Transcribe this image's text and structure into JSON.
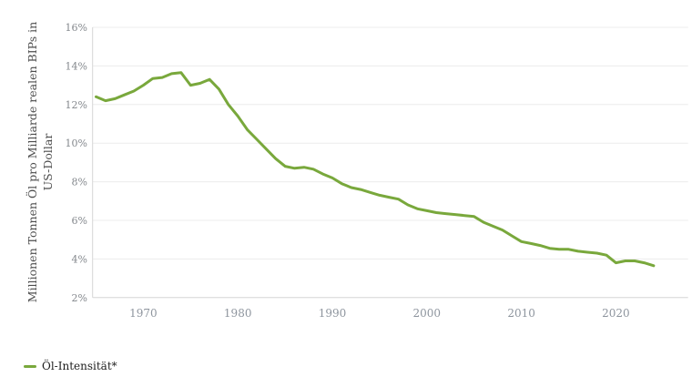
{
  "chart_data": {
    "type": "line",
    "title": "",
    "xlabel": "",
    "ylabel": "Millionen Tonnen Öl pro Milliarde realen BIPs in US-Dollar",
    "ylabel_lines": [
      "Millionen Tonnen Öl pro Milliarde realen BIPs in",
      "US-Dollar"
    ],
    "x_domain": [
      1965,
      2024
    ],
    "y_domain": [
      2,
      16
    ],
    "x_ticks": [
      "1970",
      "1980",
      "1990",
      "2000",
      "2010",
      "2020"
    ],
    "y_ticks": [
      "16%",
      "14%",
      "12%",
      "10%",
      "8%",
      "6%",
      "4%",
      "2%"
    ],
    "grid": "horizontal",
    "legend_position": "bottom-left",
    "series": [
      {
        "name": "Öl-Intensität*",
        "color": "#79a83c",
        "years": [
          1965,
          1966,
          1967,
          1968,
          1969,
          1970,
          1971,
          1972,
          1973,
          1974,
          1975,
          1976,
          1977,
          1978,
          1979,
          1980,
          1981,
          1982,
          1983,
          1984,
          1985,
          1986,
          1987,
          1988,
          1989,
          1990,
          1991,
          1992,
          1993,
          1994,
          1995,
          1996,
          1997,
          1998,
          1999,
          2000,
          2001,
          2002,
          2003,
          2004,
          2005,
          2006,
          2007,
          2008,
          2009,
          2010,
          2011,
          2012,
          2013,
          2014,
          2015,
          2016,
          2017,
          2018,
          2019,
          2020,
          2021,
          2022,
          2023,
          2024
        ],
        "values": [
          12.4,
          12.2,
          12.3,
          12.5,
          12.7,
          13.0,
          13.35,
          13.4,
          13.6,
          13.65,
          13.0,
          13.1,
          13.3,
          12.8,
          12.0,
          11.4,
          10.7,
          10.2,
          9.7,
          9.2,
          8.8,
          8.7,
          8.75,
          8.65,
          8.4,
          8.2,
          7.9,
          7.7,
          7.6,
          7.45,
          7.3,
          7.2,
          7.1,
          6.8,
          6.6,
          6.5,
          6.4,
          6.35,
          6.3,
          6.25,
          6.2,
          5.9,
          5.7,
          5.5,
          5.2,
          4.9,
          4.8,
          4.7,
          4.55,
          4.5,
          4.5,
          4.4,
          4.35,
          4.3,
          4.2,
          3.8,
          3.9,
          3.9,
          3.8,
          3.65
        ]
      }
    ]
  },
  "legend": {
    "label": "Öl-Intensität*"
  },
  "colors": {
    "line": "#79a83c",
    "grid": "#ececec",
    "axis": "#d6d6d6",
    "y_tick_text": "#84888d",
    "x_tick_text": "#8e959e",
    "axis_title_text": "#4d4d4d",
    "legend_text": "#1d1d1d",
    "background": "#ffffff"
  }
}
